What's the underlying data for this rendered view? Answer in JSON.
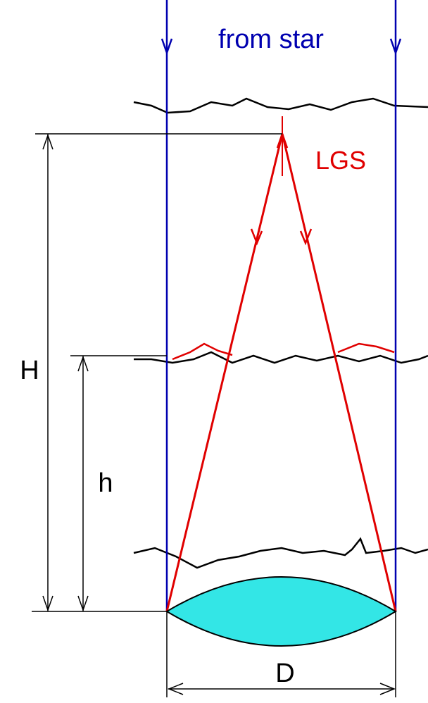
{
  "labels": {
    "source": "from  star",
    "beacon": "LGS",
    "height_upper": "H",
    "height_lower": "h",
    "diameter": "D"
  }
}
